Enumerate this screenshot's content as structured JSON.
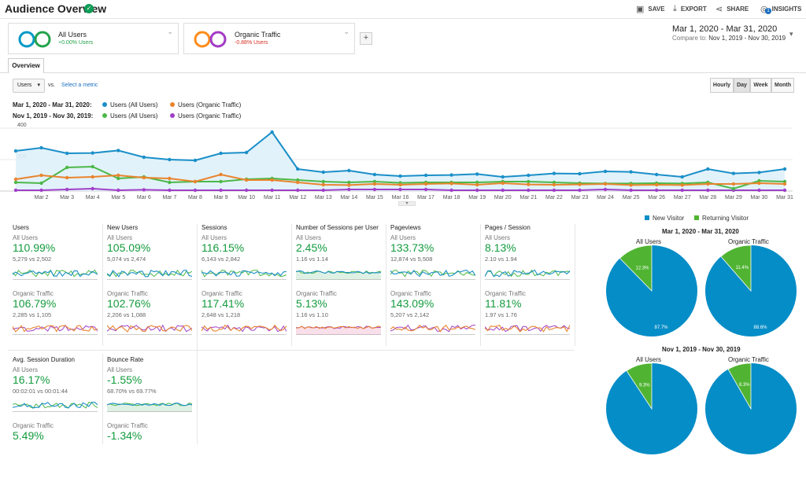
{
  "header": {
    "title": "Audience Overview",
    "save": "SAVE",
    "export": "EXPORT",
    "share": "SHARE",
    "insights": "INSIGHTS",
    "insights_badge": "1"
  },
  "segments": [
    {
      "name": "All Users",
      "sub": "+0.00% Users",
      "color1": "#0099c6",
      "color2": "#24a24c"
    },
    {
      "name": "Organic Traffic",
      "sub": "-0.88% Users",
      "color1": "#ff8c1a",
      "color2": "#a23bc6"
    }
  ],
  "add_segment": "+",
  "date": {
    "range": "Mar 1, 2020 - Mar 31, 2020",
    "compare_label": "Compare to:",
    "compare_range": "Nov 1, 2019 - Nov 30, 2019"
  },
  "tab": "Overview",
  "controls": {
    "metric": "Users",
    "vs": "vs.",
    "select_metric": "Select a metric",
    "granularity": [
      "Hourly",
      "Day",
      "Week",
      "Month"
    ],
    "active": "Day"
  },
  "legend": {
    "period1": "Mar 1, 2020 - Mar 31, 2020:",
    "period2": "Nov 1, 2019 - Nov 30, 2019:",
    "s1": "Users (All Users)",
    "s2": "Users (Organic Traffic)",
    "s3": "Users (All Users)",
    "s4": "Users (Organic Traffic)"
  },
  "colors": {
    "blue": "#1a8fc8",
    "orange": "#e9842e",
    "green": "#4cb848",
    "purple": "#a040c8"
  },
  "chart_data": {
    "type": "line",
    "ylim": [
      0,
      400
    ],
    "yticks": [
      "400",
      "200"
    ],
    "x": [
      "Mar 1",
      "Mar 2",
      "Mar 3",
      "Mar 4",
      "Mar 5",
      "Mar 6",
      "Mar 7",
      "Mar 8",
      "Mar 9",
      "Mar 10",
      "Mar 11",
      "Mar 12",
      "Mar 13",
      "Mar 14",
      "Mar 15",
      "Mar 16",
      "Mar 17",
      "Mar 18",
      "Mar 19",
      "Mar 20",
      "Mar 21",
      "Mar 22",
      "Mar 23",
      "Mar 24",
      "Mar 25",
      "Mar 26",
      "Mar 27",
      "Mar 28",
      "Mar 29",
      "Mar 30",
      "Mar 31"
    ],
    "xticks": [
      "Mar 2",
      "Mar 3",
      "Mar 4",
      "Mar 5",
      "Mar 6",
      "Mar 7",
      "Mar 8",
      "Mar 9",
      "Mar 10",
      "Mar 11",
      "Mar 12",
      "Mar 13",
      "Mar 14",
      "Mar 15",
      "Mar 16",
      "Mar 17",
      "Mar 18",
      "Mar 19",
      "Mar 20",
      "Mar 21",
      "Mar 22",
      "Mar 23",
      "Mar 24",
      "Mar 25",
      "Mar 26",
      "Mar 27",
      "Mar 28",
      "Mar 29",
      "Mar 30",
      "Mar 31"
    ],
    "series": [
      {
        "name": "Users (All Users)",
        "color": "#1a8fc8",
        "fill": true,
        "values": [
          255,
          275,
          240,
          242,
          258,
          215,
          200,
          195,
          240,
          245,
          375,
          140,
          120,
          130,
          105,
          95,
          100,
          102,
          108,
          90,
          100,
          112,
          110,
          125,
          122,
          105,
          90,
          140,
          112,
          118,
          140
        ]
      },
      {
        "name": "Users (Organic Traffic)",
        "color": "#e9842e",
        "values": [
          75,
          100,
          85,
          90,
          100,
          85,
          80,
          60,
          105,
          70,
          70,
          55,
          40,
          38,
          45,
          40,
          45,
          48,
          40,
          50,
          42,
          40,
          42,
          45,
          38,
          40,
          38,
          45,
          45,
          50,
          45
        ]
      },
      {
        "name": "Users (All Users)",
        "color": "#4cb848",
        "values": [
          55,
          50,
          150,
          155,
          80,
          90,
          55,
          60,
          60,
          75,
          80,
          70,
          60,
          55,
          60,
          52,
          55,
          55,
          55,
          60,
          60,
          55,
          50,
          48,
          48,
          50,
          48,
          55,
          15,
          65,
          60
        ]
      },
      {
        "name": "Users (Organic Traffic)",
        "color": "#a040c8",
        "values": [
          5,
          5,
          10,
          15,
          5,
          8,
          5,
          5,
          5,
          5,
          5,
          5,
          5,
          10,
          10,
          10,
          10,
          5,
          5,
          5,
          5,
          5,
          5,
          10,
          5,
          5,
          5,
          5,
          5,
          5,
          5
        ]
      }
    ]
  },
  "tiles": [
    {
      "title": "Users",
      "all_label": "All Users",
      "all_value": "110.99%",
      "all_cmp": "5,279 vs 2,502",
      "org_label": "Organic Traffic",
      "org_value": "106.79%",
      "org_cmp": "2,285 vs 1,105"
    },
    {
      "title": "New Users",
      "all_label": "All Users",
      "all_value": "105.09%",
      "all_cmp": "5,074 vs 2,474",
      "org_label": "Organic Traffic",
      "org_value": "102.76%",
      "org_cmp": "2,206 vs 1,088"
    },
    {
      "title": "Sessions",
      "all_label": "All Users",
      "all_value": "116.15%",
      "all_cmp": "6,143 vs 2,842",
      "org_label": "Organic Traffic",
      "org_value": "117.41%",
      "org_cmp": "2,648 vs 1,218"
    },
    {
      "title": "Number of Sessions per User",
      "all_label": "All Users",
      "all_value": "2.45%",
      "all_cmp": "1.16 vs 1.14",
      "org_label": "Organic Traffic",
      "org_value": "5.13%",
      "org_cmp": "1.16 vs 1.10"
    },
    {
      "title": "Pageviews",
      "all_label": "All Users",
      "all_value": "133.73%",
      "all_cmp": "12,874 vs 5,508",
      "org_label": "Organic Traffic",
      "org_value": "143.09%",
      "org_cmp": "5,207 vs 2,142"
    },
    {
      "title": "Pages / Session",
      "all_label": "All Users",
      "all_value": "8.13%",
      "all_cmp": "2.10 vs 1.94",
      "org_label": "Organic Traffic",
      "org_value": "11.81%",
      "org_cmp": "1.97 vs 1.76"
    },
    {
      "title": "Avg. Session Duration",
      "all_label": "All Users",
      "all_value": "16.17%",
      "all_cmp": "00:02:01 vs 00:01:44",
      "org_label": "Organic Traffic",
      "org_value": "5.49%",
      "org_cmp": ""
    },
    {
      "title": "Bounce Rate",
      "all_label": "All Users",
      "all_value": "-1.55%",
      "all_cmp": "68.70% vs 69.77%",
      "org_label": "Organic Traffic",
      "org_value": "-1.34%",
      "org_cmp": ""
    }
  ],
  "pies": {
    "legend_new": "New Visitor",
    "legend_returning": "Returning Visitor",
    "new_color": "#058dc7",
    "ret_color": "#50b432",
    "period1": "Mar 1, 2020 - Mar 31, 2020",
    "period2": "Nov 1, 2019 - Nov 30, 2019",
    "charts": [
      {
        "label": "All Users",
        "new": 87.7,
        "ret": 12.3,
        "new_text": "87.7%",
        "ret_text": "12.3%"
      },
      {
        "label": "Organic Traffic",
        "new": 88.6,
        "ret": 11.4,
        "new_text": "88.6%",
        "ret_text": "11.4%"
      },
      {
        "label": "All Users",
        "new": 90.7,
        "ret": 9.3,
        "new_text": "",
        "ret_text": "9.3%"
      },
      {
        "label": "Organic Traffic",
        "new": 91.7,
        "ret": 8.3,
        "new_text": "",
        "ret_text": "8.3%"
      }
    ]
  }
}
